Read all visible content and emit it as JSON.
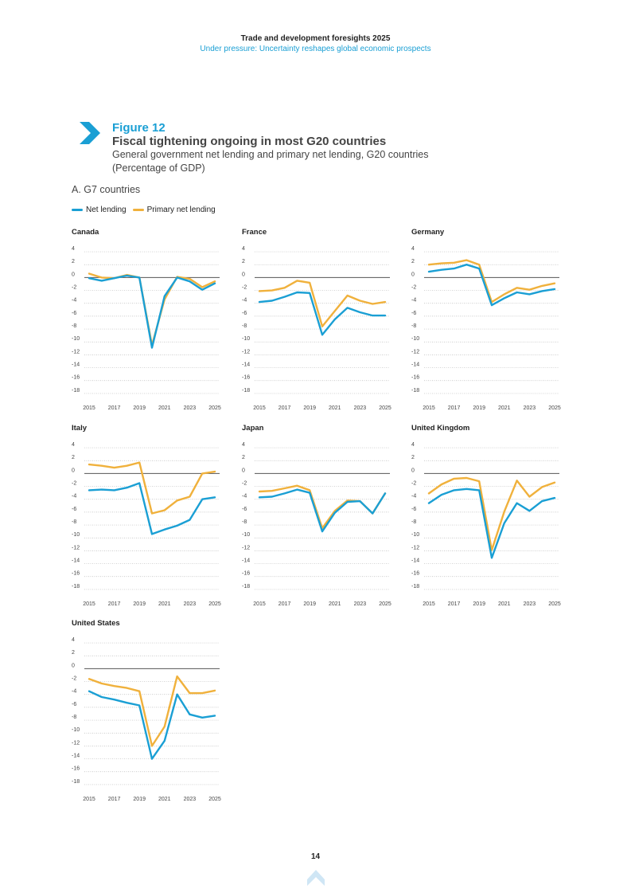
{
  "header": {
    "title": "Trade and development foresights 2025",
    "subtitle": "Under pressure: Uncertainty reshapes global economic prospects"
  },
  "figure": {
    "label": "Figure 12",
    "title": "Fiscal tightening ongoing in most G20 countries",
    "subtitle_line1": "General government net lending and primary net lending, G20 countries",
    "subtitle_line2": "(Percentage of GDP)",
    "panel_label": "A. G7 countries"
  },
  "legend": {
    "net_lending": "Net lending",
    "primary_net_lending": "Primary net lending"
  },
  "colors": {
    "net_lending": "#1a9fd4",
    "primary_net_lending": "#f0b13c",
    "accent": "#1a9fd4"
  },
  "page_number": "14",
  "chart_data": [
    {
      "type": "line",
      "title": "Canada",
      "x": [
        2015,
        2016,
        2017,
        2018,
        2019,
        2020,
        2021,
        2022,
        2023,
        2024,
        2025
      ],
      "series": [
        {
          "name": "Net lending",
          "values": [
            -0.1,
            -0.5,
            -0.1,
            0.3,
            0.0,
            -10.9,
            -2.9,
            0.0,
            -0.6,
            -1.9,
            -0.9
          ]
        },
        {
          "name": "Primary net lending",
          "values": [
            0.6,
            0.0,
            -0.1,
            0.4,
            0.0,
            -10.5,
            -3.4,
            0.1,
            -0.2,
            -1.5,
            -0.6
          ]
        }
      ],
      "yticks": [
        4,
        2,
        0,
        -2,
        -4,
        -6,
        -8,
        -10,
        -12,
        -14,
        -16,
        -18
      ],
      "xticks": [
        2015,
        2017,
        2019,
        2021,
        2023,
        2025
      ],
      "ylim": [
        -19,
        4.5
      ]
    },
    {
      "type": "line",
      "title": "France",
      "x": [
        2015,
        2016,
        2017,
        2018,
        2019,
        2020,
        2021,
        2022,
        2023,
        2024,
        2025
      ],
      "series": [
        {
          "name": "Net lending",
          "values": [
            -3.8,
            -3.6,
            -3.0,
            -2.3,
            -2.4,
            -8.9,
            -6.5,
            -4.7,
            -5.4,
            -5.9,
            -5.9
          ]
        },
        {
          "name": "Primary net lending",
          "values": [
            -2.1,
            -2.0,
            -1.6,
            -0.5,
            -0.8,
            -7.6,
            -5.2,
            -2.8,
            -3.6,
            -4.1,
            -3.8
          ]
        }
      ],
      "yticks": [
        4,
        2,
        0,
        -2,
        -4,
        -6,
        -8,
        -10,
        -12,
        -14,
        -16,
        -18
      ],
      "xticks": [
        2015,
        2017,
        2019,
        2021,
        2023,
        2025
      ],
      "ylim": [
        -19,
        4.5
      ]
    },
    {
      "type": "line",
      "title": "Germany",
      "x": [
        2015,
        2016,
        2017,
        2018,
        2019,
        2020,
        2021,
        2022,
        2023,
        2024,
        2025
      ],
      "series": [
        {
          "name": "Net lending",
          "values": [
            0.9,
            1.2,
            1.4,
            2.0,
            1.4,
            -4.3,
            -3.2,
            -2.3,
            -2.6,
            -2.1,
            -1.8
          ]
        },
        {
          "name": "Primary net lending",
          "values": [
            2.0,
            2.2,
            2.3,
            2.7,
            2.0,
            -3.8,
            -2.6,
            -1.6,
            -1.9,
            -1.3,
            -0.9
          ]
        }
      ],
      "yticks": [
        4,
        2,
        0,
        -2,
        -4,
        -6,
        -8,
        -10,
        -12,
        -14,
        -16,
        -18
      ],
      "xticks": [
        2015,
        2017,
        2019,
        2021,
        2023,
        2025
      ],
      "ylim": [
        -19,
        4.5
      ]
    },
    {
      "type": "line",
      "title": "Italy",
      "x": [
        2015,
        2016,
        2017,
        2018,
        2019,
        2020,
        2021,
        2022,
        2023,
        2024,
        2025
      ],
      "series": [
        {
          "name": "Net lending",
          "values": [
            -2.6,
            -2.5,
            -2.6,
            -2.2,
            -1.5,
            -9.4,
            -8.7,
            -8.1,
            -7.2,
            -4.0,
            -3.7
          ]
        },
        {
          "name": "Primary net lending",
          "values": [
            1.4,
            1.2,
            0.9,
            1.2,
            1.7,
            -6.2,
            -5.7,
            -4.2,
            -3.6,
            0.0,
            0.3
          ]
        }
      ],
      "yticks": [
        4,
        2,
        0,
        -2,
        -4,
        -6,
        -8,
        -10,
        -12,
        -14,
        -16,
        -18
      ],
      "xticks": [
        2015,
        2017,
        2019,
        2021,
        2023,
        2025
      ],
      "ylim": [
        -19,
        4.5
      ]
    },
    {
      "type": "line",
      "title": "Japan",
      "x": [
        2015,
        2016,
        2017,
        2018,
        2019,
        2020,
        2021,
        2022,
        2023,
        2024,
        2025
      ],
      "series": [
        {
          "name": "Net lending",
          "values": [
            -3.7,
            -3.6,
            -3.1,
            -2.5,
            -3.0,
            -9.0,
            -6.1,
            -4.4,
            -4.3,
            -6.2,
            -3.1
          ]
        },
        {
          "name": "Primary net lending",
          "values": [
            -2.8,
            -2.7,
            -2.3,
            -1.9,
            -2.6,
            -8.5,
            -5.8,
            -4.2,
            -4.3,
            -6.2,
            -3.1
          ]
        }
      ],
      "yticks": [
        4,
        2,
        0,
        -2,
        -4,
        -6,
        -8,
        -10,
        -12,
        -14,
        -16,
        -18
      ],
      "xticks": [
        2015,
        2017,
        2019,
        2021,
        2023,
        2025
      ],
      "ylim": [
        -19,
        4.5
      ]
    },
    {
      "type": "line",
      "title": "United Kingdom",
      "x": [
        2015,
        2016,
        2017,
        2018,
        2019,
        2020,
        2021,
        2022,
        2023,
        2024,
        2025
      ],
      "series": [
        {
          "name": "Net lending",
          "values": [
            -4.6,
            -3.3,
            -2.6,
            -2.4,
            -2.6,
            -13.1,
            -7.7,
            -4.6,
            -5.8,
            -4.3,
            -3.8
          ]
        },
        {
          "name": "Primary net lending",
          "values": [
            -3.1,
            -1.7,
            -0.8,
            -0.7,
            -1.2,
            -11.9,
            -5.9,
            -1.1,
            -3.6,
            -2.1,
            -1.4
          ]
        }
      ],
      "yticks": [
        4,
        2,
        0,
        -2,
        -4,
        -6,
        -8,
        -10,
        -12,
        -14,
        -16,
        -18
      ],
      "xticks": [
        2015,
        2017,
        2019,
        2021,
        2023,
        2025
      ],
      "ylim": [
        -19,
        4.5
      ]
    },
    {
      "type": "line",
      "title": "United States",
      "x": [
        2015,
        2016,
        2017,
        2018,
        2019,
        2020,
        2021,
        2022,
        2023,
        2024,
        2025
      ],
      "series": [
        {
          "name": "Net lending",
          "values": [
            -3.5,
            -4.4,
            -4.8,
            -5.3,
            -5.7,
            -14.0,
            -11.2,
            -4.0,
            -7.1,
            -7.6,
            -7.3
          ]
        },
        {
          "name": "Primary net lending",
          "values": [
            -1.6,
            -2.3,
            -2.7,
            -3.0,
            -3.5,
            -12.0,
            -9.0,
            -1.2,
            -3.8,
            -3.8,
            -3.4
          ]
        }
      ],
      "yticks": [
        4,
        2,
        0,
        -2,
        -4,
        -6,
        -8,
        -10,
        -12,
        -14,
        -16,
        -18
      ],
      "xticks": [
        2015,
        2017,
        2019,
        2021,
        2023,
        2025
      ],
      "ylim": [
        -19,
        4.5
      ]
    }
  ]
}
